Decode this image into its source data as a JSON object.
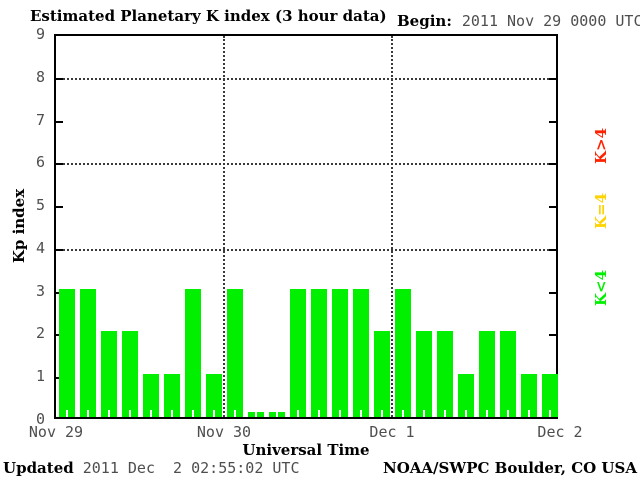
{
  "header": {
    "title": "Estimated Planetary K index (3 hour data)",
    "begin_label": "Begin:",
    "begin_value": "2011 Nov 29 0000 UTC"
  },
  "footer": {
    "updated_label": "Updated",
    "updated_value": "2011 Dec  2 02:55:02 UTC",
    "source": "NOAA/SWPC Boulder, CO USA"
  },
  "chart_data": {
    "type": "bar",
    "title": "Estimated Planetary K index (3 hour data)",
    "xlabel": "Universal Time",
    "ylabel": "Kp index",
    "begin": "2011 Nov 29 0000 UTC",
    "interval_hours": 3,
    "bars_per_day": 8,
    "ylim": [
      0,
      9
    ],
    "yticks": [
      0,
      1,
      2,
      3,
      4,
      5,
      6,
      7,
      8,
      9
    ],
    "grid_y": [
      4,
      6,
      8
    ],
    "x_tick_labels": [
      "Nov 29",
      "Nov 30",
      "Dec 1",
      "Dec 2"
    ],
    "bar_color": "#00f000",
    "values": [
      3,
      3,
      2,
      2,
      1,
      1,
      3,
      1,
      3,
      0,
      0,
      3,
      3,
      3,
      3,
      2,
      3,
      2,
      2,
      1,
      2,
      2,
      1,
      1
    ],
    "legend": [
      {
        "label": "K>4",
        "color": "#ff2200"
      },
      {
        "label": "K=4",
        "color": "#ffd300"
      },
      {
        "label": "K<4",
        "color": "#00f000"
      }
    ],
    "legend_position": "right"
  }
}
